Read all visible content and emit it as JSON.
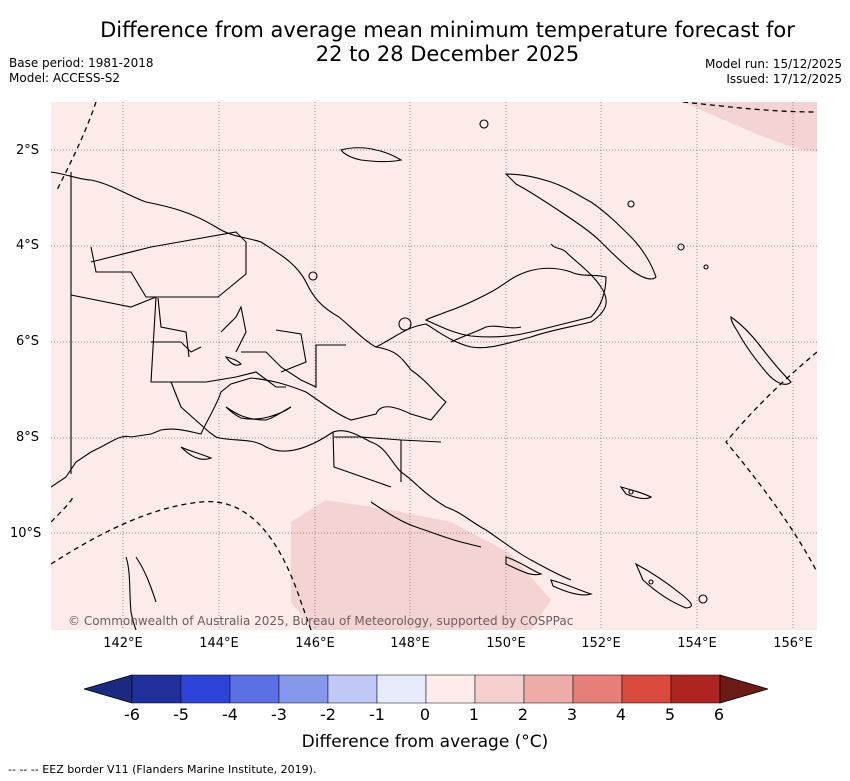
{
  "title_line1": "Difference from average mean minimum temperature forecast for",
  "title_line2": "22 to 28 December 2025",
  "base_period": "Base period: 1981-2018",
  "model": "Model: ACCESS-S2",
  "model_run": "Model run: 15/12/2025",
  "issued": "Issued: 17/12/2025",
  "lat_labels": [
    "2°S",
    "4°S",
    "6°S",
    "8°S",
    "10°S"
  ],
  "lon_labels": [
    "142°E",
    "144°E",
    "146°E",
    "148°E",
    "150°E",
    "152°E",
    "154°E",
    "156°E"
  ],
  "colorbar": {
    "ticks": [
      "-6",
      "-5",
      "-4",
      "-3",
      "-2",
      "-1",
      "0",
      "1",
      "2",
      "3",
      "4",
      "5",
      "6"
    ],
    "colors": [
      "#1f2f9b",
      "#2c44d9",
      "#5b70e3",
      "#8698ec",
      "#c0c8f5",
      "#e6eafb",
      "#fdecea",
      "#f5d0cf",
      "#efaba7",
      "#e67f77",
      "#da4a3c",
      "#ad2420"
    ],
    "under_color": "#1a2a82",
    "over_color": "#6d1b17",
    "title": "Difference from average (°C)"
  },
  "colors": {
    "background_anomaly": "#fcebe9",
    "anomaly_1_2": "#f3d4d2",
    "coastline": "#000000",
    "grid": "#7a6a6a"
  },
  "copyright": "© Commonwealth of Australia 2025, Bureau of Meteorology, supported by COSPPac",
  "footer": "-- -- -- EEZ border V11 (Flanders Marine Institute, 2019)."
}
